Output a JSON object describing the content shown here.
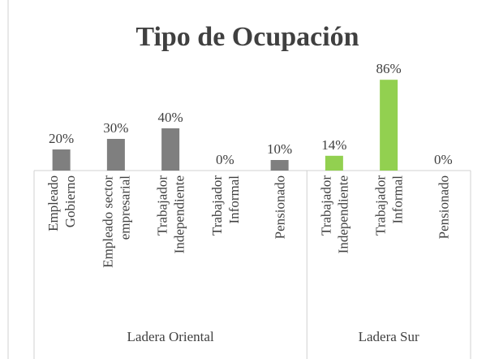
{
  "chart_data": {
    "type": "bar",
    "title": "Tipo de Ocupación",
    "categories": [
      [
        "Empleado",
        "Gobierno"
      ],
      [
        "Empleado sector",
        "empresarial"
      ],
      [
        "Trabajador",
        "Independiente"
      ],
      [
        "Trabajador",
        "Informal"
      ],
      [
        "Pensionado"
      ],
      [
        "Trabajador",
        "Independiente"
      ],
      [
        "Trabajador",
        "Informal"
      ],
      [
        "Pensionado"
      ]
    ],
    "series": [
      {
        "name": "Ladera Oriental",
        "color": "#7f7f7f",
        "values": [
          20,
          30,
          40,
          0,
          10,
          null,
          null,
          null
        ],
        "value_labels": [
          "20%",
          "30%",
          "40%",
          "0%",
          "10%",
          null,
          null,
          null
        ]
      },
      {
        "name": "Ladera Sur",
        "color": "#92d050",
        "values": [
          null,
          null,
          null,
          null,
          null,
          14,
          86,
          0
        ],
        "value_labels": [
          null,
          null,
          null,
          null,
          null,
          "14%",
          "86%",
          "0%"
        ]
      }
    ]
  }
}
